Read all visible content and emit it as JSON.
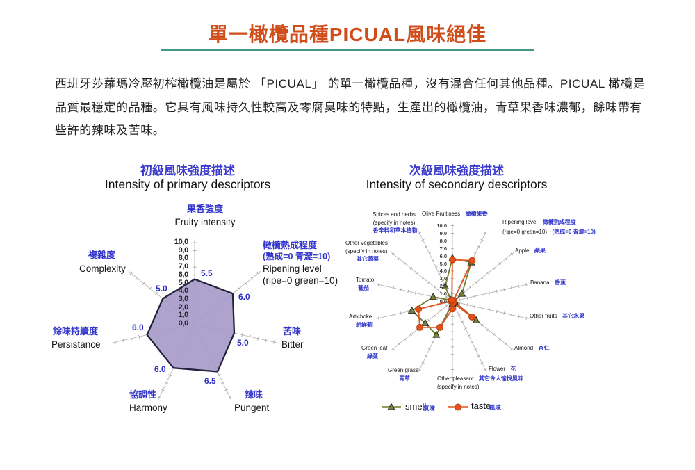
{
  "page": {
    "title": "單一橄欖品種PICUAL風味絕佳"
  },
  "intro": {
    "lines": [
      "西班牙莎蘿瑪冷壓初榨橄欖油是屬於 「PICUAL」 的單一橄欖品種，沒有混合任何其他品種。PICUAL 橄欖是",
      "品質最穩定的品種。它具有風味持久性較高及零腐臭味的特點，生產出的橄欖油，青草果香味濃郁，餘味帶有",
      "些許的辣味及苦味。"
    ]
  },
  "sections": {
    "primary_zh": "初級風味強度描述",
    "primary_en": "Intensity of primary descriptors",
    "secondary_zh": "次級風味強度描述",
    "secondary_en": "Intensity of secondary descriptors"
  },
  "legend": {
    "smell_en": "smell",
    "smell_zh": "氣味",
    "taste_en": "taste",
    "taste_zh": "風味"
  },
  "colors": {
    "title_orange": "#d04e1c",
    "underline_teal": "#43988a",
    "heading_blue": "#3d3ccd",
    "label_blue": "#3336c9",
    "polygon_purple": "#a79bc8",
    "smell_olive": "#6f7c2d",
    "taste_orange": "#e2531e"
  },
  "chart_data": [
    {
      "type": "radar",
      "name": "Intensity of primary descriptors",
      "axis_count": 7,
      "scale": {
        "min": 0,
        "max": 10,
        "tick_labels": [
          "10,0",
          "9,0",
          "8,0",
          "7,0",
          "6,0",
          "5,0",
          "4,0",
          "3,0",
          "2,0",
          "1,0",
          "0,0"
        ]
      },
      "fill_color": "#a79bc8",
      "border_color": "#23223c",
      "values": [
        5.5,
        6.0,
        5.0,
        6.5,
        6.0,
        6.0,
        5.0
      ],
      "axes": [
        {
          "zh": "果香強度",
          "en": "Fruity intensity",
          "value_label": "5.5"
        },
        {
          "zh": "橄欖熟成程度",
          "zh2": "(熟成=0 青澀=10)",
          "en": "Ripening level",
          "en2": "(ripe=0 green=10)",
          "value_label": "6.0"
        },
        {
          "zh": "苦味",
          "en": "Bitter",
          "value_label": "5.0"
        },
        {
          "zh": "辣味",
          "en": "Pungent",
          "value_label": "6.5"
        },
        {
          "zh": "協調性",
          "en": "Harmony",
          "value_label": "6.0"
        },
        {
          "zh": "餘味持續度",
          "en": "Persistance",
          "value_label": "6.0"
        },
        {
          "zh": "複雜度",
          "en": "Complexity",
          "value_label": "5.0"
        }
      ]
    },
    {
      "type": "radar",
      "name": "Intensity of secondary descriptors",
      "axis_count": 14,
      "scale": {
        "min": 0,
        "max": 10,
        "tick_labels": [
          "10.0",
          "9.0",
          "8.0",
          "7.0",
          "6.0",
          "5.0",
          "4.0",
          "3.0",
          "2.0",
          "1.0",
          "0.0"
        ]
      },
      "axes": [
        {
          "en": "Olive Fruitiness",
          "zh": "橄欖果香"
        },
        {
          "en": "Ripening level",
          "en2": "(ripe=0 green=10)",
          "zh": "橄欖熟成程度",
          "zh2": "(熟成=0 青澀=10)"
        },
        {
          "en": "Apple",
          "zh": "蘋果"
        },
        {
          "en": "Banana",
          "zh": "香蕉"
        },
        {
          "en": "Other fruits",
          "zh": "其它水果"
        },
        {
          "en": "Almond",
          "zh": "杏仁"
        },
        {
          "en": "Flower",
          "zh": "花"
        },
        {
          "en": "Other pleasant",
          "en2": "(specify in notes)",
          "zh": "其它令人愉悅風味"
        },
        {
          "en": "Green grass",
          "zh": "青草"
        },
        {
          "en": "Green leaf",
          "zh": "綠葉"
        },
        {
          "en": "Artichoke",
          "zh": "朝鮮薊"
        },
        {
          "en": "Tomato",
          "zh": "蕃茄"
        },
        {
          "en": "Other vegetables",
          "en2": "(specify in notes)",
          "zh": "其它蔬菜"
        },
        {
          "en": "Spices and herbs",
          "en2": "(specify in notes)",
          "zh": "香辛料和草本植物"
        }
      ],
      "series": [
        {
          "name": "smell",
          "name_zh": "氣味",
          "marker": "triangle",
          "color": "#6f7c2d",
          "values": [
            5.7,
            5.7,
            1.6,
            0.3,
            0.3,
            4.0,
            0.2,
            0.3,
            4.9,
            4.6,
            5.5,
            2.6,
            0.3,
            2.2
          ]
        },
        {
          "name": "taste",
          "name_zh": "風味",
          "marker": "circle",
          "color": "#e2531e",
          "values": [
            5.5,
            6.0,
            0.2,
            0.2,
            0.2,
            3.3,
            0.2,
            1.0,
            3.8,
            5.5,
            4.6,
            0.2,
            0.2,
            0.2
          ]
        }
      ]
    }
  ]
}
